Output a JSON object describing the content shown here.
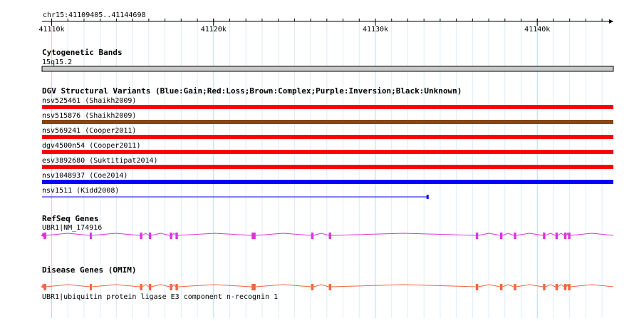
{
  "ruler": {
    "region": "chr15:41109405..41144698",
    "start": 41109405,
    "end": 41144698,
    "ticks": [
      {
        "pos": 41110000,
        "label": "41110k"
      },
      {
        "pos": 41120000,
        "label": "41120k"
      },
      {
        "pos": 41130000,
        "label": "41130k"
      },
      {
        "pos": 41140000,
        "label": "41140k"
      }
    ],
    "minor_step": 1000
  },
  "tracks": {
    "cytoband": {
      "title": "Cytogenetic Bands",
      "band": {
        "name": "15q15.2",
        "start": 41109405,
        "end": 41144698,
        "color": "#c8c8c8"
      }
    },
    "dgv": {
      "title": "DGV Structural Variants (Blue:Gain;Red:Loss;Brown:Complex;Purple:Inversion;Black:Unknown)",
      "colors": {
        "Gain": "#0000ff",
        "Loss": "#ff0000",
        "Complex": "#8b4513",
        "Inversion": "#800080",
        "Unknown": "#000000"
      },
      "items": [
        {
          "label": "nsv525461 (Shaikh2009)",
          "type": "Loss",
          "start": 41109405,
          "end": 41144698
        },
        {
          "label": "nsv515876 (Shaikh2009)",
          "type": "Complex",
          "start": 41109405,
          "end": 41144698
        },
        {
          "label": "nsv569241 (Cooper2011)",
          "type": "Loss",
          "start": 41109405,
          "end": 41144698
        },
        {
          "label": "dgv4500n54 (Cooper2011)",
          "type": "Loss",
          "start": 41109405,
          "end": 41144698
        },
        {
          "label": "esv3892680 (Suktitipat2014)",
          "type": "Loss",
          "start": 41109405,
          "end": 41144698
        },
        {
          "label": "nsv1048937 (Coe2014)",
          "type": "Gain",
          "start": 41109405,
          "end": 41144698
        },
        {
          "label": "nsv1511 (Kidd2008)",
          "type": "Gain",
          "thin": true,
          "start": 41109405,
          "end": 41133200
        }
      ]
    },
    "refseq": {
      "title": "RefSeq Genes",
      "gene_label": "UBR1|NM_174916",
      "color": "#dd33dd",
      "strand": "-",
      "start": 41109405,
      "end": 41144698,
      "exons": [
        [
          41109500,
          41109650
        ],
        [
          41112350,
          41112480
        ],
        [
          41115450,
          41115600
        ],
        [
          41116000,
          41116150
        ],
        [
          41117300,
          41117450
        ],
        [
          41117650,
          41117800
        ],
        [
          41122350,
          41122600
        ],
        [
          41126030,
          41126180
        ],
        [
          41127120,
          41127270
        ],
        [
          41136200,
          41136350
        ],
        [
          41137700,
          41137850
        ],
        [
          41138550,
          41138700
        ],
        [
          41140350,
          41140500
        ],
        [
          41141120,
          41141270
        ],
        [
          41141650,
          41141800
        ],
        [
          41141900,
          41142050
        ]
      ]
    },
    "omim": {
      "title": "Disease Genes (OMIM)",
      "gene_label": "UBR1|ubiquitin protein ligase E3 component n-recognin 1",
      "color": "#ee6644",
      "strand": "-",
      "start": 41109405,
      "end": 41144698,
      "exons": [
        [
          41109500,
          41109650
        ],
        [
          41112350,
          41112480
        ],
        [
          41115450,
          41115600
        ],
        [
          41116000,
          41116150
        ],
        [
          41117300,
          41117450
        ],
        [
          41117650,
          41117800
        ],
        [
          41122350,
          41122600
        ],
        [
          41126030,
          41126180
        ],
        [
          41127120,
          41127270
        ],
        [
          41136200,
          41136350
        ],
        [
          41137700,
          41137850
        ],
        [
          41138550,
          41138700
        ],
        [
          41140350,
          41140500
        ],
        [
          41141120,
          41141270
        ],
        [
          41141650,
          41141800
        ],
        [
          41141900,
          41142050
        ]
      ]
    }
  }
}
